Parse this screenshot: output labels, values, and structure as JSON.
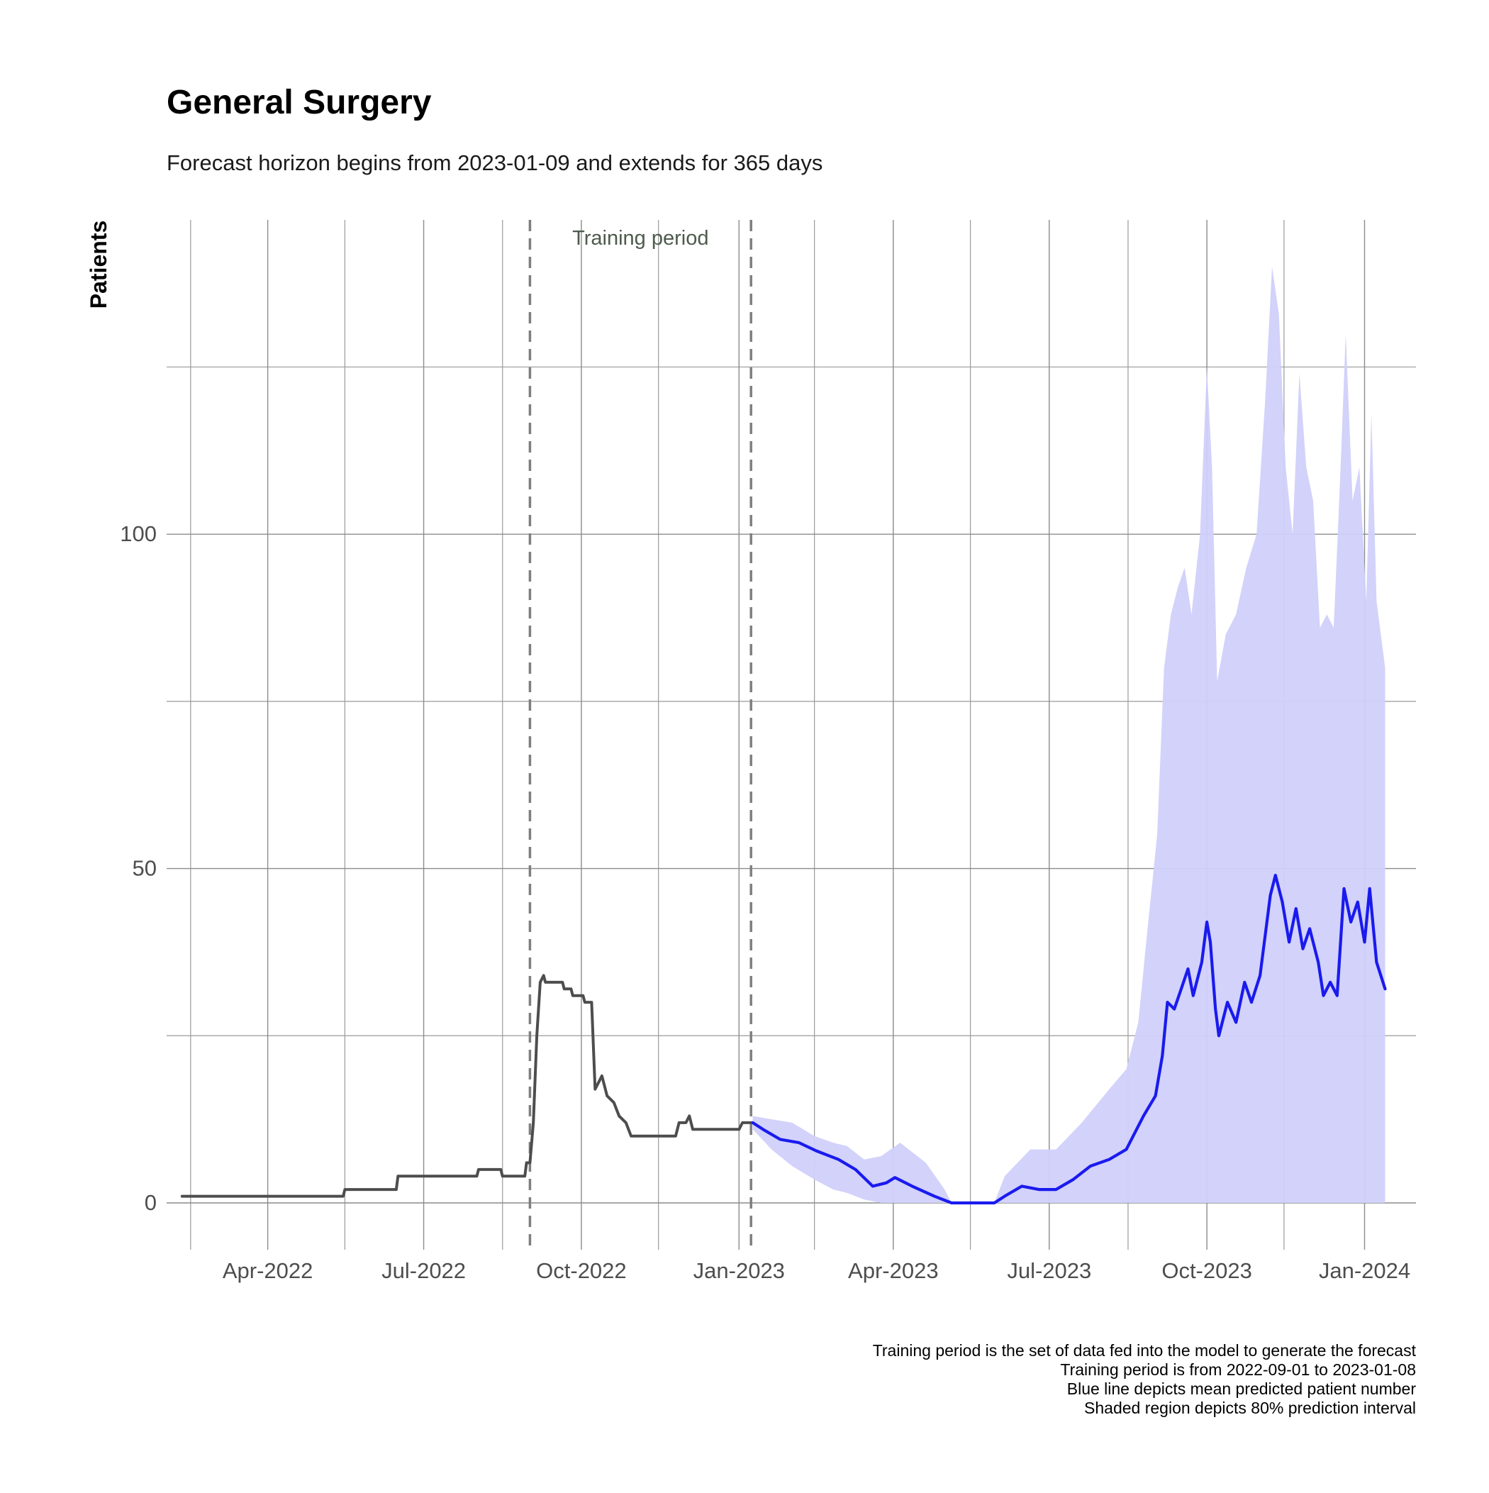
{
  "chart_data": {
    "type": "line",
    "title": "General Surgery",
    "subtitle": "Forecast horizon begins from 2023-01-09 and extends for 365 days",
    "ylabel": "Patients",
    "xlabel": "",
    "xlim": [
      "2022-02-01",
      "2024-01-31"
    ],
    "ylim": [
      -7,
      147
    ],
    "y_ticks": [
      0,
      50,
      100
    ],
    "y_minor_ticks": [
      25,
      75,
      125
    ],
    "x_ticks": [
      {
        "date": "2022-04-01",
        "label": "Apr-2022"
      },
      {
        "date": "2022-07-01",
        "label": "Jul-2022"
      },
      {
        "date": "2022-10-01",
        "label": "Oct-2022"
      },
      {
        "date": "2023-01-01",
        "label": "Jan-2023"
      },
      {
        "date": "2023-04-01",
        "label": "Apr-2023"
      },
      {
        "date": "2023-07-01",
        "label": "Jul-2023"
      },
      {
        "date": "2023-10-01",
        "label": "Oct-2023"
      },
      {
        "date": "2024-01-01",
        "label": "Jan-2024"
      }
    ],
    "x_minor_ticks": [
      "2022-02-15",
      "2022-05-16",
      "2022-08-16",
      "2022-11-15",
      "2023-02-14",
      "2023-05-16",
      "2023-08-16",
      "2023-11-15"
    ],
    "grid": true,
    "training_period": {
      "start": "2022-09-01",
      "end": "2023-01-08",
      "label": "Training period",
      "color": "#7f7f7f"
    },
    "series": [
      {
        "role": "observed",
        "color": "#4d4d4d",
        "points": [
          [
            "2022-02-10",
            1
          ],
          [
            "2022-05-15",
            1
          ],
          [
            "2022-05-16",
            2
          ],
          [
            "2022-06-15",
            2
          ],
          [
            "2022-06-16",
            4
          ],
          [
            "2022-08-01",
            4
          ],
          [
            "2022-08-02",
            5
          ],
          [
            "2022-08-15",
            5
          ],
          [
            "2022-08-16",
            4
          ],
          [
            "2022-08-29",
            4
          ],
          [
            "2022-08-30",
            6
          ],
          [
            "2022-09-01",
            6
          ],
          [
            "2022-09-03",
            12
          ],
          [
            "2022-09-05",
            25
          ],
          [
            "2022-09-07",
            33
          ],
          [
            "2022-09-09",
            34
          ],
          [
            "2022-09-10",
            33
          ],
          [
            "2022-09-20",
            33
          ],
          [
            "2022-09-21",
            32
          ],
          [
            "2022-09-25",
            32
          ],
          [
            "2022-09-26",
            31
          ],
          [
            "2022-10-02",
            31
          ],
          [
            "2022-10-03",
            30
          ],
          [
            "2022-10-07",
            30
          ],
          [
            "2022-10-09",
            17
          ],
          [
            "2022-10-11",
            18
          ],
          [
            "2022-10-13",
            19
          ],
          [
            "2022-10-16",
            16
          ],
          [
            "2022-10-20",
            15
          ],
          [
            "2022-10-23",
            13
          ],
          [
            "2022-10-27",
            12
          ],
          [
            "2022-10-30",
            10
          ],
          [
            "2022-11-25",
            10
          ],
          [
            "2022-11-27",
            12
          ],
          [
            "2022-12-01",
            12
          ],
          [
            "2022-12-03",
            13
          ],
          [
            "2022-12-05",
            11
          ],
          [
            "2023-01-01",
            11
          ],
          [
            "2023-01-03",
            12
          ],
          [
            "2023-01-08",
            12
          ]
        ]
      },
      {
        "role": "forecast mean",
        "color": "#1a1aee",
        "points": [
          [
            "2023-01-09",
            12
          ],
          [
            "2023-01-15",
            11
          ],
          [
            "2023-01-25",
            9.5
          ],
          [
            "2023-02-05",
            9
          ],
          [
            "2023-02-15",
            7.8
          ],
          [
            "2023-02-28",
            6.5
          ],
          [
            "2023-03-10",
            5
          ],
          [
            "2023-03-20",
            2.5
          ],
          [
            "2023-03-28",
            3
          ],
          [
            "2023-04-02",
            3.8
          ],
          [
            "2023-04-12",
            2.5
          ],
          [
            "2023-04-25",
            1
          ],
          [
            "2023-05-05",
            0
          ],
          [
            "2023-05-30",
            0
          ],
          [
            "2023-06-05",
            1
          ],
          [
            "2023-06-15",
            2.5
          ],
          [
            "2023-06-25",
            2
          ],
          [
            "2023-07-05",
            2
          ],
          [
            "2023-07-15",
            3.5
          ],
          [
            "2023-07-25",
            5.5
          ],
          [
            "2023-08-05",
            6.5
          ],
          [
            "2023-08-15",
            8
          ],
          [
            "2023-08-25",
            13
          ],
          [
            "2023-09-01",
            16
          ],
          [
            "2023-09-05",
            22
          ],
          [
            "2023-09-08",
            30
          ],
          [
            "2023-09-12",
            29
          ],
          [
            "2023-09-16",
            32
          ],
          [
            "2023-09-20",
            35
          ],
          [
            "2023-09-23",
            31
          ],
          [
            "2023-09-28",
            36
          ],
          [
            "2023-10-01",
            42
          ],
          [
            "2023-10-03",
            39
          ],
          [
            "2023-10-06",
            29
          ],
          [
            "2023-10-08",
            25
          ],
          [
            "2023-10-13",
            30
          ],
          [
            "2023-10-18",
            27
          ],
          [
            "2023-10-23",
            33
          ],
          [
            "2023-10-27",
            30
          ],
          [
            "2023-11-01",
            34
          ],
          [
            "2023-11-07",
            46
          ],
          [
            "2023-11-10",
            49
          ],
          [
            "2023-11-14",
            45
          ],
          [
            "2023-11-18",
            39
          ],
          [
            "2023-11-22",
            44
          ],
          [
            "2023-11-26",
            38
          ],
          [
            "2023-11-30",
            41
          ],
          [
            "2023-12-05",
            36
          ],
          [
            "2023-12-08",
            31
          ],
          [
            "2023-12-12",
            33
          ],
          [
            "2023-12-16",
            31
          ],
          [
            "2023-12-20",
            47
          ],
          [
            "2023-12-24",
            42
          ],
          [
            "2023-12-28",
            45
          ],
          [
            "2024-01-01",
            39
          ],
          [
            "2024-01-04",
            47
          ],
          [
            "2024-01-08",
            36
          ],
          [
            "2024-01-13",
            32
          ]
        ]
      }
    ],
    "interval": {
      "level": "80%",
      "color": "#d0d0fb",
      "points": [
        [
          "2023-01-09",
          13,
          11
        ],
        [
          "2023-01-20",
          12.5,
          8
        ],
        [
          "2023-02-01",
          12,
          5.5
        ],
        [
          "2023-02-14",
          10,
          3.5
        ],
        [
          "2023-02-25",
          9,
          2
        ],
        [
          "2023-03-05",
          8.5,
          1.5
        ],
        [
          "2023-03-15",
          6.5,
          0.5
        ],
        [
          "2023-03-25",
          7,
          0
        ],
        [
          "2023-04-05",
          9,
          0
        ],
        [
          "2023-04-20",
          6,
          0
        ],
        [
          "2023-05-01",
          2,
          0
        ],
        [
          "2023-05-05",
          0,
          0
        ],
        [
          "2023-05-30",
          0,
          0
        ],
        [
          "2023-06-05",
          4,
          0
        ],
        [
          "2023-06-20",
          8,
          0
        ],
        [
          "2023-07-05",
          8,
          0
        ],
        [
          "2023-07-20",
          12,
          0
        ],
        [
          "2023-08-05",
          17,
          0
        ],
        [
          "2023-08-15",
          20,
          0
        ],
        [
          "2023-08-22",
          27,
          0
        ],
        [
          "2023-08-27",
          40,
          0
        ],
        [
          "2023-09-02",
          55,
          0
        ],
        [
          "2023-09-06",
          80,
          0
        ],
        [
          "2023-09-10",
          88,
          0
        ],
        [
          "2023-09-14",
          92,
          0
        ],
        [
          "2023-09-18",
          95,
          0
        ],
        [
          "2023-09-22",
          88,
          0
        ],
        [
          "2023-09-27",
          100,
          0
        ],
        [
          "2023-10-01",
          125,
          0
        ],
        [
          "2023-10-04",
          110,
          0
        ],
        [
          "2023-10-07",
          78,
          0
        ],
        [
          "2023-10-12",
          85,
          0
        ],
        [
          "2023-10-18",
          88,
          0
        ],
        [
          "2023-10-24",
          95,
          0
        ],
        [
          "2023-10-30",
          100,
          0
        ],
        [
          "2023-11-04",
          120,
          0
        ],
        [
          "2023-11-08",
          140,
          0
        ],
        [
          "2023-11-12",
          133,
          0
        ],
        [
          "2023-11-16",
          110,
          0
        ],
        [
          "2023-11-20",
          100,
          0
        ],
        [
          "2023-11-24",
          124,
          0
        ],
        [
          "2023-11-28",
          110,
          0
        ],
        [
          "2023-12-02",
          105,
          0
        ],
        [
          "2023-12-06",
          86,
          0
        ],
        [
          "2023-12-10",
          88,
          0
        ],
        [
          "2023-12-14",
          86,
          0
        ],
        [
          "2023-12-18",
          110,
          0
        ],
        [
          "2023-12-21",
          130,
          0
        ],
        [
          "2023-12-25",
          105,
          0
        ],
        [
          "2023-12-29",
          110,
          0
        ],
        [
          "2024-01-02",
          90,
          0
        ],
        [
          "2024-01-05",
          118,
          0
        ],
        [
          "2024-01-08",
          90,
          0
        ],
        [
          "2024-01-13",
          80,
          0
        ]
      ]
    },
    "caption": [
      "Training period is the set of data fed into the model to generate the forecast",
      "Training period is from 2022-09-01 to 2023-01-08",
      "Blue line depicts mean predicted patient number",
      "Shaded region depicts 80% prediction interval"
    ]
  }
}
